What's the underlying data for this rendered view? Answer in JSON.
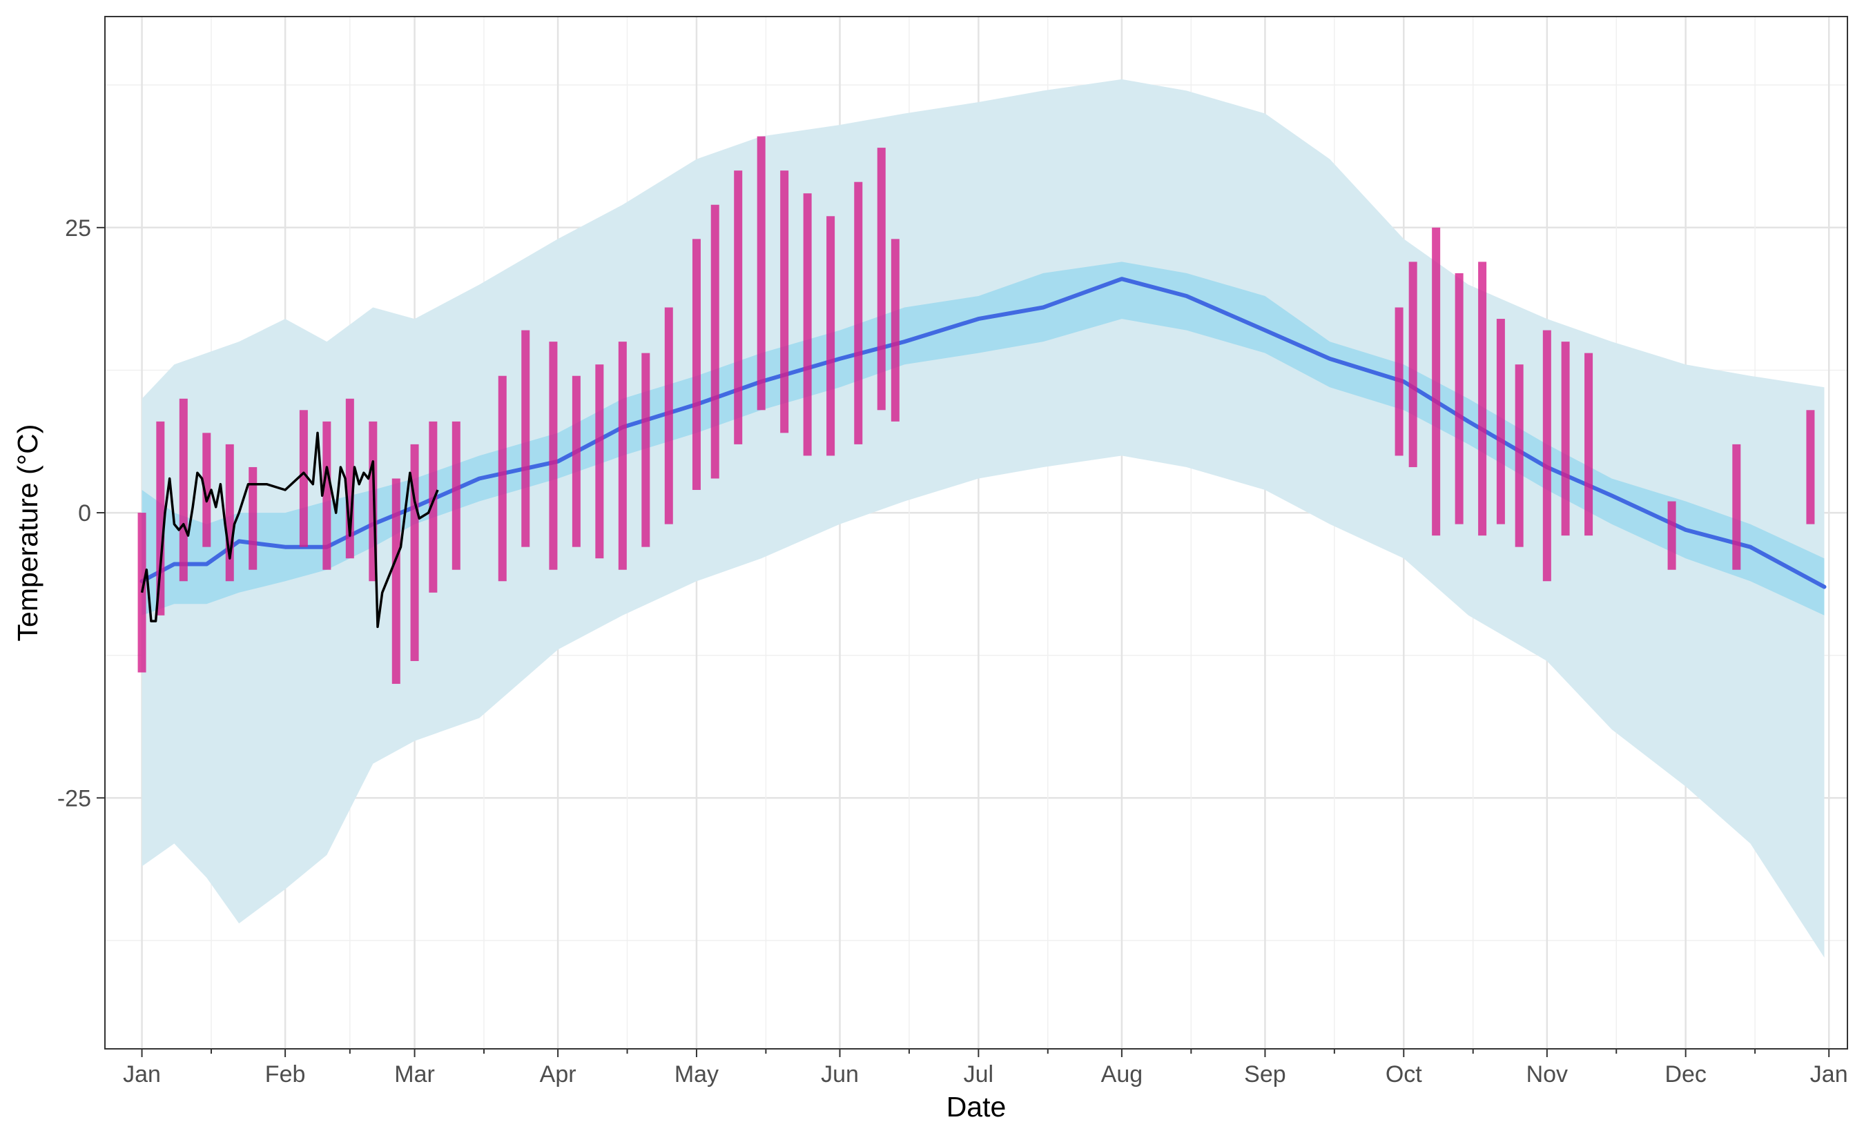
{
  "chart_data": {
    "type": "line",
    "title": "",
    "xlabel": "Date",
    "ylabel": "Temperature (°C)",
    "ylim": [
      -47,
      43.5
    ],
    "xlim": [
      "2000-12-24",
      "2002-01-05"
    ],
    "grid": true,
    "legend": "none",
    "x_ticks": [
      "2001-01-01",
      "2001-02-01",
      "2001-03-01",
      "2001-04-01",
      "2001-05-01",
      "2001-06-01",
      "2001-07-01",
      "2001-08-01",
      "2001-09-01",
      "2001-10-01",
      "2001-11-01",
      "2001-12-01",
      "2002-01-01"
    ],
    "x_tick_labels": [
      "Jan",
      "Feb",
      "Mar",
      "Apr",
      "May",
      "Jun",
      "Jul",
      "Aug",
      "Sep",
      "Oct",
      "Nov",
      "Dec",
      "Jan"
    ],
    "y_ticks": [
      25,
      0,
      -25
    ],
    "y_tick_labels": [
      "25",
      "0",
      "-25"
    ],
    "colors": {
      "record_range": "#d6eaf1",
      "normal_range": "#a6dcef",
      "normal_mean": "#4169e1",
      "observed_range": "#d41e8c",
      "observed_mean": "#000000"
    },
    "series": [
      {
        "role": "record_range",
        "x": [
          "2001-01-01",
          "2001-01-08",
          "2001-01-15",
          "2001-01-22",
          "2001-02-01",
          "2001-02-10",
          "2001-02-20",
          "2001-03-01",
          "2001-03-15",
          "2001-04-01",
          "2001-04-15",
          "2001-05-01",
          "2001-05-15",
          "2001-06-01",
          "2001-06-15",
          "2001-07-01",
          "2001-07-15",
          "2001-08-01",
          "2001-08-15",
          "2001-09-01",
          "2001-09-15",
          "2001-10-01",
          "2001-10-15",
          "2001-11-01",
          "2001-11-15",
          "2001-12-01",
          "2001-12-15",
          "2001-12-31"
        ],
        "low": [
          -31,
          -29,
          -32,
          -36,
          -33,
          -30,
          -22,
          -20,
          -18,
          -12,
          -9,
          -6,
          -4,
          -1,
          1,
          3,
          4,
          5,
          4,
          2,
          -1,
          -4,
          -9,
          -13,
          -19,
          -24,
          -29,
          -39
        ],
        "high": [
          10,
          13,
          14,
          15,
          17,
          15,
          18,
          17,
          20,
          24,
          27,
          31,
          33,
          34,
          35,
          36,
          37,
          38,
          37,
          35,
          31,
          24,
          20,
          17,
          15,
          13,
          12,
          11
        ]
      },
      {
        "role": "normal_range",
        "x": [
          "2001-01-01",
          "2001-01-08",
          "2001-01-15",
          "2001-01-22",
          "2001-02-01",
          "2001-02-10",
          "2001-02-20",
          "2001-03-01",
          "2001-03-15",
          "2001-04-01",
          "2001-04-15",
          "2001-05-01",
          "2001-05-15",
          "2001-06-01",
          "2001-06-15",
          "2001-07-01",
          "2001-07-15",
          "2001-08-01",
          "2001-08-15",
          "2001-09-01",
          "2001-09-15",
          "2001-10-01",
          "2001-10-15",
          "2001-11-01",
          "2001-11-15",
          "2001-12-01",
          "2001-12-15",
          "2001-12-31"
        ],
        "low": [
          -9,
          -8,
          -8,
          -7,
          -6,
          -5,
          -3,
          -1,
          1,
          3,
          5,
          7,
          9,
          11,
          13,
          14,
          15,
          17,
          16,
          14,
          11,
          9,
          6,
          2,
          -1,
          -4,
          -6,
          -9
        ],
        "high": [
          2,
          0,
          -1,
          0,
          0,
          1,
          2,
          3,
          5,
          7,
          10,
          12,
          14,
          16,
          18,
          19,
          21,
          22,
          21,
          19,
          15,
          13,
          10,
          6,
          3,
          1,
          -1,
          -4
        ]
      },
      {
        "role": "normal_mean",
        "x": [
          "2001-01-01",
          "2001-01-08",
          "2001-01-15",
          "2001-01-22",
          "2001-02-01",
          "2001-02-10",
          "2001-02-20",
          "2001-03-01",
          "2001-03-15",
          "2001-04-01",
          "2001-04-15",
          "2001-05-01",
          "2001-05-15",
          "2001-06-01",
          "2001-06-15",
          "2001-07-01",
          "2001-07-15",
          "2001-08-01",
          "2001-08-15",
          "2001-09-01",
          "2001-09-15",
          "2001-10-01",
          "2001-10-15",
          "2001-11-01",
          "2001-11-15",
          "2001-12-01",
          "2001-12-15",
          "2001-12-31"
        ],
        "values": [
          -6,
          -4.5,
          -4.5,
          -2.5,
          -3,
          -3,
          -1,
          0.5,
          3,
          4.5,
          7.5,
          9.5,
          11.5,
          13.5,
          15,
          17,
          18,
          20.5,
          19,
          16,
          13.5,
          11.5,
          8,
          4,
          1.5,
          -1.5,
          -3,
          -6.5
        ]
      },
      {
        "role": "observed_range",
        "x": [
          "2001-01-01",
          "2001-01-05",
          "2001-01-10",
          "2001-01-15",
          "2001-01-20",
          "2001-01-25",
          "2001-02-05",
          "2001-02-10",
          "2001-02-15",
          "2001-02-20",
          "2001-02-25",
          "2001-03-01",
          "2001-03-05",
          "2001-03-10",
          "2001-03-20",
          "2001-03-25",
          "2001-03-31",
          "2001-04-05",
          "2001-04-10",
          "2001-04-15",
          "2001-04-20",
          "2001-04-25",
          "2001-05-01",
          "2001-05-05",
          "2001-05-10",
          "2001-05-15",
          "2001-05-20",
          "2001-05-25",
          "2001-05-30",
          "2001-06-05",
          "2001-06-10",
          "2001-06-13",
          "2001-09-30",
          "2001-10-03",
          "2001-10-08",
          "2001-10-13",
          "2001-10-18",
          "2001-10-22",
          "2001-10-26",
          "2001-11-01",
          "2001-11-05",
          "2001-11-10",
          "2001-11-28",
          "2001-12-12",
          "2001-12-28"
        ],
        "low": [
          -14,
          -9,
          -6,
          -3,
          -6,
          -5,
          -3,
          -5,
          -4,
          -6,
          -15,
          -13,
          -7,
          -5,
          -6,
          -3,
          -5,
          -3,
          -4,
          -5,
          -3,
          -1,
          2,
          3,
          6,
          9,
          7,
          5,
          5,
          6,
          9,
          8,
          5,
          4,
          -2,
          -1,
          -2,
          -1,
          -3,
          -6,
          -2,
          -2,
          -5,
          -5,
          -1
        ],
        "high": [
          0,
          8,
          10,
          7,
          6,
          4,
          9,
          8,
          10,
          8,
          3,
          6,
          8,
          8,
          12,
          16,
          15,
          12,
          13,
          15,
          14,
          18,
          24,
          27,
          30,
          33,
          30,
          28,
          26,
          29,
          32,
          24,
          18,
          22,
          25,
          21,
          22,
          17,
          13,
          16,
          15,
          14,
          1,
          6,
          9
        ]
      },
      {
        "role": "observed_mean",
        "x": [
          "2001-01-01",
          "2001-01-02",
          "2001-01-03",
          "2001-01-04",
          "2001-01-06",
          "2001-01-07",
          "2001-01-08",
          "2001-01-09",
          "2001-01-10",
          "2001-01-11",
          "2001-01-12",
          "2001-01-13",
          "2001-01-14",
          "2001-01-15",
          "2001-01-16",
          "2001-01-17",
          "2001-01-18",
          "2001-01-19",
          "2001-01-20",
          "2001-01-21",
          "2001-01-22",
          "2001-01-24",
          "2001-01-25",
          "2001-01-26",
          "2001-01-27",
          "2001-01-28",
          "2001-02-01",
          "2001-02-05",
          "2001-02-07",
          "2001-02-08",
          "2001-02-09",
          "2001-02-10",
          "2001-02-11",
          "2001-02-12",
          "2001-02-13",
          "2001-02-14",
          "2001-02-15",
          "2001-02-16",
          "2001-02-17",
          "2001-02-18",
          "2001-02-19",
          "2001-02-20",
          "2001-02-21",
          "2001-02-22",
          "2001-02-23",
          "2001-02-25",
          "2001-02-26",
          "2001-02-28",
          "2001-03-01",
          "2001-03-02",
          "2001-03-04",
          "2001-03-05",
          "2001-03-06"
        ],
        "values": [
          -7,
          -5,
          -9.5,
          -9.5,
          0,
          3,
          -1,
          -1.5,
          -1,
          -2,
          0.5,
          3.5,
          3,
          1,
          2,
          0.5,
          2.5,
          -1,
          -4,
          -1,
          0,
          2.5,
          2.5,
          2.5,
          2.5,
          2.5,
          2,
          3.5,
          2.5,
          7,
          1.5,
          4,
          2,
          0,
          4,
          3,
          -2,
          4,
          2.5,
          3.5,
          3,
          4.5,
          -10,
          -7,
          -6,
          -4,
          -3,
          3.5,
          1,
          -0.5,
          0,
          1,
          2
        ]
      }
    ]
  }
}
